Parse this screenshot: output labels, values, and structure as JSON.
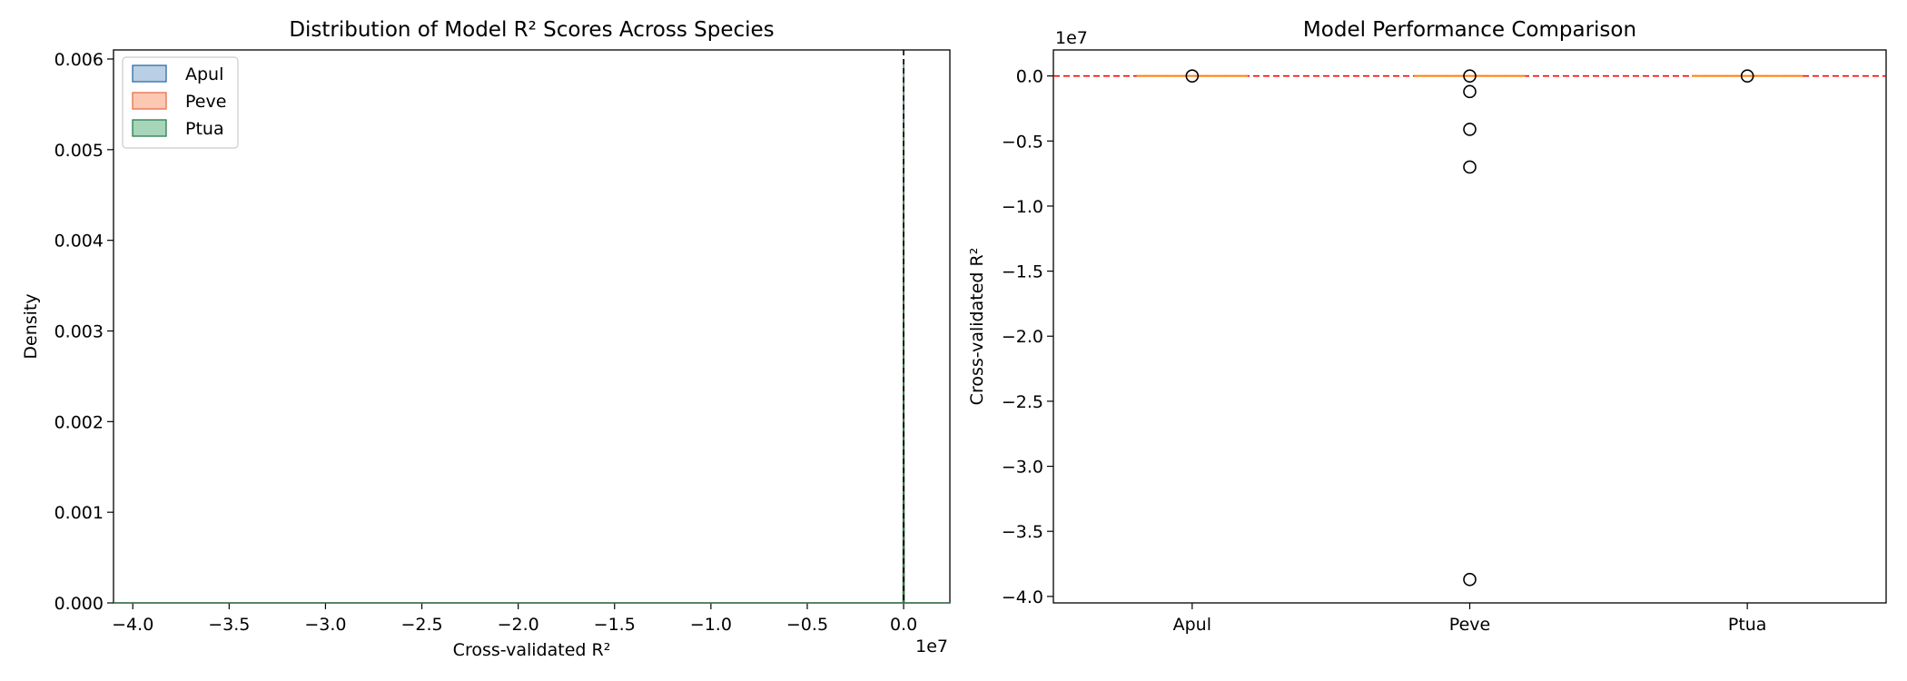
{
  "chart_data": [
    {
      "type": "area",
      "title": "Distribution of Model R² Scores Across Species",
      "xlabel": "Cross-validated R²",
      "ylabel": "Density",
      "x_offset_label": "1e7",
      "xlim": [
        -41000000.0,
        2400000.0
      ],
      "ylim": [
        0,
        0.0061
      ],
      "xticks": [
        -4.0,
        -3.5,
        -3.0,
        -2.5,
        -2.0,
        -1.5,
        -1.0,
        -0.5,
        0.0
      ],
      "xtick_labels": [
        "−4.0",
        "−3.5",
        "−3.0",
        "−2.5",
        "−2.0",
        "−1.5",
        "−1.0",
        "−0.5",
        "0.0"
      ],
      "yticks": [
        0.0,
        0.001,
        0.002,
        0.003,
        0.004,
        0.005,
        0.006
      ],
      "ytick_labels": [
        "0.000",
        "0.001",
        "0.002",
        "0.003",
        "0.004",
        "0.005",
        "0.006"
      ],
      "reference_line_x": 0,
      "legend_position": "upper-left",
      "series": [
        {
          "name": "Apul",
          "color": "#2e6da4",
          "fill": "#b9cfe5",
          "peak_x": 0,
          "peak_density": 0.006
        },
        {
          "name": "Peve",
          "color": "#e8704a",
          "fill": "#fcc8b3",
          "peak_x": 0,
          "peak_density": 0.006
        },
        {
          "name": "Ptua",
          "color": "#2a7c4c",
          "fill": "#a6d5b9",
          "peak_x": 0,
          "peak_density": 0.006
        }
      ]
    },
    {
      "type": "box",
      "title": "Model Performance Comparison",
      "ylabel": "Cross-validated R²",
      "y_offset_label": "1e7",
      "ylim": [
        -40500000.0,
        2000000.0
      ],
      "yticks": [
        0.0,
        -0.5,
        -1.0,
        -1.5,
        -2.0,
        -2.5,
        -3.0,
        -3.5,
        -4.0
      ],
      "ytick_labels": [
        "0.0",
        "−0.5",
        "−1.0",
        "−1.5",
        "−2.0",
        "−2.5",
        "−3.0",
        "−3.5",
        "−4.0"
      ],
      "categories": [
        "Apul",
        "Peve",
        "Ptua"
      ],
      "reference_line_y": 0,
      "median_color": "#ff7f0e",
      "boxes": [
        {
          "name": "Apul",
          "median": 0,
          "outliers": [
            0
          ]
        },
        {
          "name": "Peve",
          "median": 0,
          "outliers": [
            0,
            -1200000.0,
            -4100000.0,
            -7000000.0,
            -38700000.0
          ]
        },
        {
          "name": "Ptua",
          "median": 0,
          "outliers": [
            0
          ]
        }
      ]
    }
  ]
}
